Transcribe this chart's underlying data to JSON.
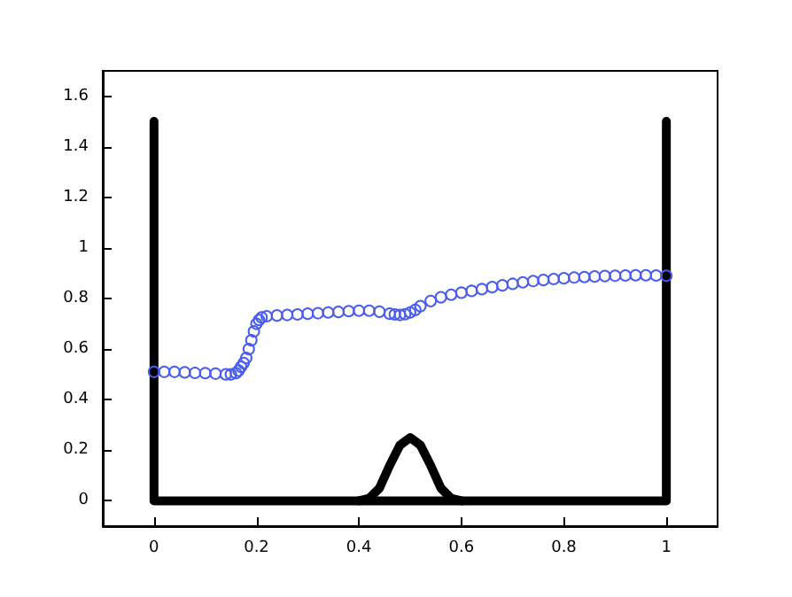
{
  "chart_data": {
    "type": "line",
    "xlim": [
      -0.1,
      1.1
    ],
    "xticks": [
      0,
      0.2,
      0.4,
      0.6,
      0.8,
      1
    ],
    "ylim": [
      -0.1,
      1.7
    ],
    "yticks": [
      0,
      0.2,
      0.4,
      0.6,
      0.8,
      1,
      1.2,
      1.4,
      1.6
    ],
    "grid": false,
    "series": [
      {
        "type": "line",
        "color": "#000000",
        "marker": "none",
        "x": [
          0,
          0,
          1,
          1
        ],
        "values": [
          1.5,
          0,
          0,
          1.5
        ]
      },
      {
        "type": "line",
        "color": "#000000",
        "marker": "none",
        "x": [
          0.4,
          0.42,
          0.44,
          0.46,
          0.48,
          0.5,
          0.52,
          0.54,
          0.56,
          0.58,
          0.6
        ],
        "values": [
          0,
          0.01,
          0.05,
          0.14,
          0.22,
          0.25,
          0.22,
          0.14,
          0.05,
          0.01,
          0
        ]
      },
      {
        "type": "scatter",
        "color": "#4a5cf0",
        "marker": "circle",
        "x": [
          0,
          0.02,
          0.04,
          0.06,
          0.08,
          0.1,
          0.12,
          0.14,
          0.15,
          0.16,
          0.165,
          0.17,
          0.175,
          0.18,
          0.185,
          0.19,
          0.195,
          0.2,
          0.205,
          0.21,
          0.22,
          0.24,
          0.26,
          0.28,
          0.3,
          0.32,
          0.34,
          0.36,
          0.38,
          0.4,
          0.42,
          0.44,
          0.46,
          0.47,
          0.48,
          0.49,
          0.5,
          0.51,
          0.52,
          0.54,
          0.56,
          0.58,
          0.6,
          0.62,
          0.64,
          0.66,
          0.68,
          0.7,
          0.72,
          0.74,
          0.76,
          0.78,
          0.8,
          0.82,
          0.84,
          0.86,
          0.88,
          0.9,
          0.92,
          0.94,
          0.96,
          0.98,
          1
        ],
        "values": [
          0.51,
          0.51,
          0.51,
          0.508,
          0.506,
          0.505,
          0.503,
          0.5,
          0.5,
          0.505,
          0.515,
          0.53,
          0.545,
          0.565,
          0.6,
          0.635,
          0.67,
          0.7,
          0.715,
          0.725,
          0.73,
          0.733,
          0.735,
          0.737,
          0.74,
          0.742,
          0.745,
          0.747,
          0.75,
          0.752,
          0.752,
          0.748,
          0.74,
          0.737,
          0.735,
          0.738,
          0.745,
          0.755,
          0.77,
          0.79,
          0.805,
          0.815,
          0.823,
          0.83,
          0.837,
          0.845,
          0.852,
          0.858,
          0.864,
          0.869,
          0.873,
          0.877,
          0.88,
          0.883,
          0.885,
          0.887,
          0.889,
          0.89,
          0.891,
          0.892,
          0.892,
          0.891,
          0.89
        ]
      }
    ]
  }
}
